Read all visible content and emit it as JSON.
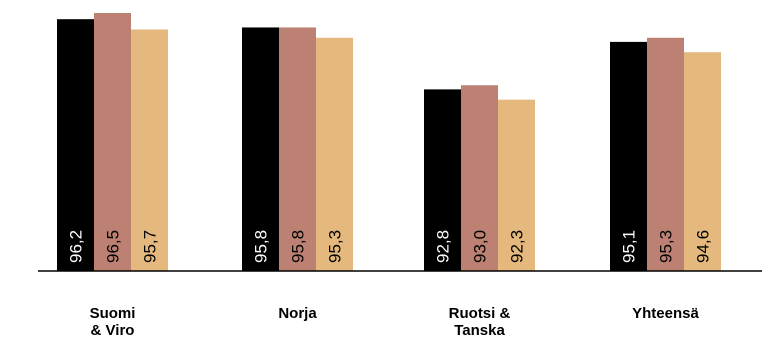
{
  "chart_data": {
    "type": "bar",
    "categories": [
      [
        "Suomi",
        "& Viro"
      ],
      [
        "Norja"
      ],
      [
        "Ruotsi &",
        "Tanska"
      ],
      [
        "Yhteensä"
      ]
    ],
    "series": [
      {
        "values": [
          96.2,
          95.8,
          92.8,
          95.1
        ],
        "labels": [
          "96,2",
          "95,8",
          "92,8",
          "95,1"
        ],
        "color": "#000000",
        "label_color": "#ffffff"
      },
      {
        "values": [
          96.5,
          95.8,
          93.0,
          95.3
        ],
        "labels": [
          "96,5",
          "95,8",
          "93,0",
          "95,3"
        ],
        "color": "#bd8173",
        "label_color": "#000000"
      },
      {
        "values": [
          95.7,
          95.3,
          92.3,
          94.6
        ],
        "labels": [
          "95,7",
          "95,3",
          "92,3",
          "94,6"
        ],
        "color": "#e5b87d",
        "label_color": "#000000"
      }
    ],
    "ylim": [
      0,
      100
    ],
    "grid": false,
    "legend": "none"
  }
}
